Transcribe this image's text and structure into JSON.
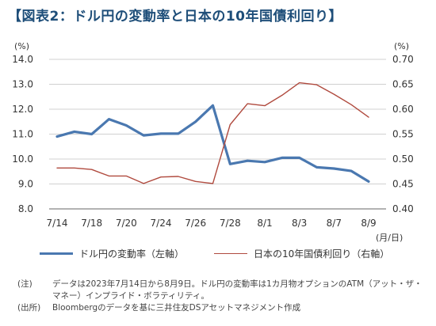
{
  "title": "【図表2：ドル円の変動率と日本の10年国債利回り】",
  "chart_data": {
    "type": "line",
    "x": [
      "7/14",
      "7/17",
      "7/18",
      "7/19",
      "7/20",
      "7/21",
      "7/24",
      "7/25",
      "7/26",
      "7/27",
      "7/28",
      "7/31",
      "8/1",
      "8/2",
      "8/3",
      "8/4",
      "8/7",
      "8/8",
      "8/9"
    ],
    "x_tick_labels": [
      "7/14",
      "7/18",
      "7/20",
      "7/24",
      "7/26",
      "7/28",
      "8/1",
      "8/3",
      "8/7",
      "8/9"
    ],
    "x_unit": "(月/日)",
    "left_axis": {
      "unit": "(%)",
      "ylim": [
        8.0,
        14.0
      ],
      "ticks": [
        "8.0",
        "9.0",
        "10.0",
        "11.0",
        "12.0",
        "13.0",
        "14.0"
      ]
    },
    "right_axis": {
      "unit": "(%)",
      "ylim": [
        0.4,
        0.7
      ],
      "ticks": [
        "0.40",
        "0.45",
        "0.50",
        "0.55",
        "0.60",
        "0.65",
        "0.70"
      ]
    },
    "grid": "horizontal",
    "legend_position": "bottom",
    "series": [
      {
        "name": "ドル円の変動率（左軸）",
        "axis": "left",
        "color": "#4a78b0",
        "values": [
          10.9,
          11.1,
          11.0,
          11.6,
          11.35,
          10.95,
          11.02,
          11.02,
          11.5,
          12.15,
          9.8,
          9.93,
          9.88,
          10.05,
          10.05,
          9.67,
          9.62,
          9.52,
          9.1
        ]
      },
      {
        "name": "日本の10年国債利回り（右軸）",
        "axis": "right",
        "color": "#b04a3e",
        "values": [
          0.482,
          0.482,
          0.479,
          0.466,
          0.466,
          0.451,
          0.464,
          0.465,
          0.455,
          0.451,
          0.569,
          0.611,
          0.607,
          0.628,
          0.653,
          0.649,
          0.63,
          0.609,
          0.584
        ]
      }
    ]
  },
  "notes": [
    {
      "label": "(注)",
      "text": "データは2023年7月14日から8月9日。ドル円の変動率は1カ月物オプションのATM（アット・ザ・マネー）インプライド・ボラティリティ。"
    },
    {
      "label": "(出所)",
      "text": "Bloombergのデータを基に三井住友DSアセットマネジメント作成"
    }
  ]
}
